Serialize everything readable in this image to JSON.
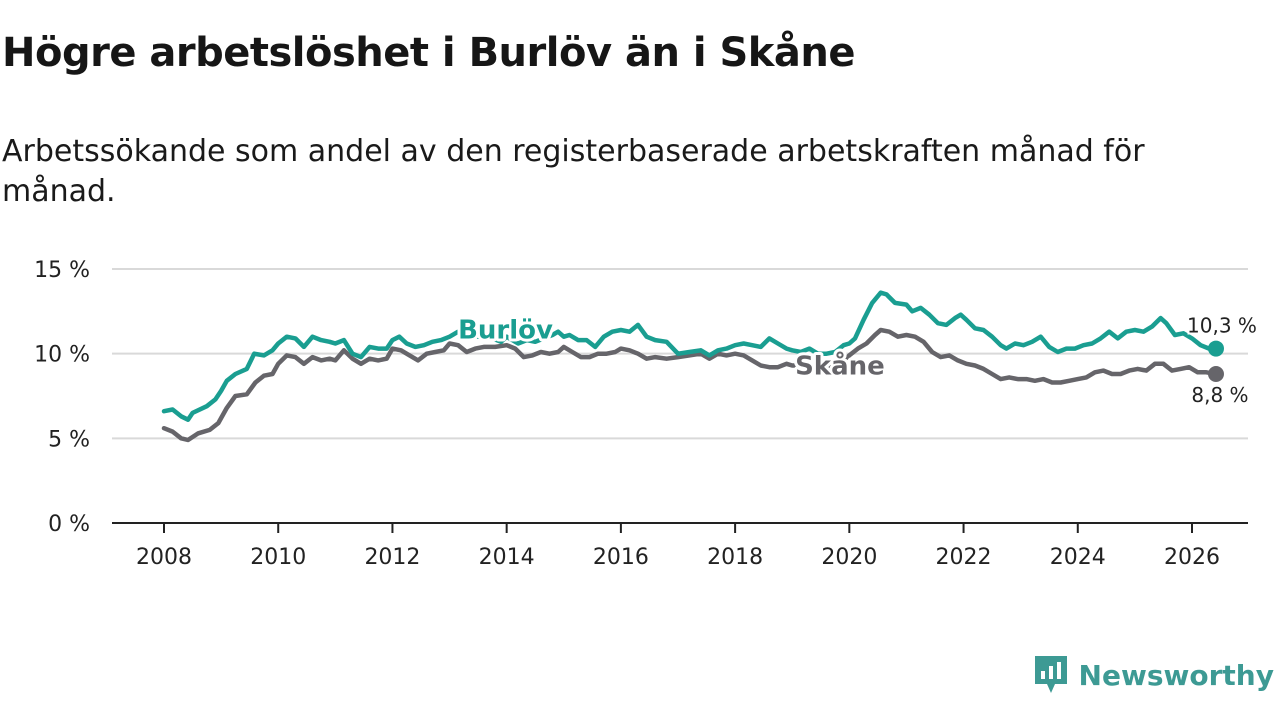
{
  "title": "Högre arbetslöshet i Burlöv än i Skåne",
  "subtitle": "Arbetssökande som andel av den registerbaserade arbetskraften månad för månad.",
  "brand": {
    "name": "Newsworthy",
    "icon": "newsworthy-logo-icon",
    "color": "#3d9a94"
  },
  "chart_data": {
    "type": "line",
    "title": "Högre arbetslöshet i Burlöv än i Skåne",
    "xlabel": "",
    "ylabel": "",
    "xlim": [
      2007.6,
      2027.0
    ],
    "ylim": [
      0,
      15
    ],
    "x_ticks": [
      2008,
      2010,
      2012,
      2014,
      2016,
      2018,
      2020,
      2022,
      2024,
      2026
    ],
    "x_tick_labels": [
      "2008",
      "2010",
      "2012",
      "2014",
      "2016",
      "2018",
      "2020",
      "2022",
      "2024",
      "2026"
    ],
    "y_ticks": [
      0,
      5,
      10,
      15
    ],
    "y_tick_labels": [
      "0 %",
      "5 %",
      "10 %",
      "15 %"
    ],
    "grid": true,
    "series": [
      {
        "name": "Burlöv",
        "color": "#1a9e91",
        "end_label": "10,3 %",
        "points": [
          [
            2008.0,
            6.6
          ],
          [
            2008.15,
            6.7
          ],
          [
            2008.3,
            6.3
          ],
          [
            2008.42,
            6.1
          ],
          [
            2008.5,
            6.5
          ],
          [
            2008.75,
            6.9
          ],
          [
            2008.9,
            7.3
          ],
          [
            2009.0,
            7.8
          ],
          [
            2009.1,
            8.4
          ],
          [
            2009.25,
            8.8
          ],
          [
            2009.45,
            9.1
          ],
          [
            2009.58,
            10.0
          ],
          [
            2009.75,
            9.9
          ],
          [
            2009.9,
            10.2
          ],
          [
            2010.0,
            10.6
          ],
          [
            2010.15,
            11.0
          ],
          [
            2010.3,
            10.9
          ],
          [
            2010.45,
            10.4
          ],
          [
            2010.6,
            11.0
          ],
          [
            2010.75,
            10.8
          ],
          [
            2010.9,
            10.7
          ],
          [
            2011.0,
            10.6
          ],
          [
            2011.15,
            10.8
          ],
          [
            2011.3,
            10.0
          ],
          [
            2011.45,
            9.8
          ],
          [
            2011.6,
            10.4
          ],
          [
            2011.75,
            10.3
          ],
          [
            2011.9,
            10.3
          ],
          [
            2012.0,
            10.8
          ],
          [
            2012.12,
            11.0
          ],
          [
            2012.25,
            10.6
          ],
          [
            2012.4,
            10.4
          ],
          [
            2012.55,
            10.5
          ],
          [
            2012.7,
            10.7
          ],
          [
            2012.85,
            10.8
          ],
          [
            2013.0,
            11.0
          ],
          [
            2013.15,
            11.3
          ],
          [
            2013.3,
            11.2
          ],
          [
            2013.45,
            11.0
          ],
          [
            2013.6,
            11.0
          ],
          [
            2013.75,
            10.9
          ],
          [
            2013.9,
            10.7
          ],
          [
            2014.0,
            11.0
          ],
          [
            2014.2,
            10.6
          ],
          [
            2014.35,
            10.8
          ],
          [
            2014.5,
            10.7
          ],
          [
            2014.65,
            10.9
          ],
          [
            2014.8,
            11.1
          ],
          [
            2014.9,
            11.3
          ],
          [
            2015.0,
            11.0
          ],
          [
            2015.1,
            11.1
          ],
          [
            2015.25,
            10.8
          ],
          [
            2015.4,
            10.8
          ],
          [
            2015.55,
            10.4
          ],
          [
            2015.7,
            11.0
          ],
          [
            2015.85,
            11.3
          ],
          [
            2016.0,
            11.4
          ],
          [
            2016.15,
            11.3
          ],
          [
            2016.3,
            11.7
          ],
          [
            2016.45,
            11.0
          ],
          [
            2016.6,
            10.8
          ],
          [
            2016.8,
            10.7
          ],
          [
            2017.0,
            10.0
          ],
          [
            2017.2,
            10.1
          ],
          [
            2017.4,
            10.2
          ],
          [
            2017.55,
            9.9
          ],
          [
            2017.7,
            10.2
          ],
          [
            2017.85,
            10.3
          ],
          [
            2018.0,
            10.5
          ],
          [
            2018.15,
            10.6
          ],
          [
            2018.3,
            10.5
          ],
          [
            2018.45,
            10.4
          ],
          [
            2018.6,
            10.9
          ],
          [
            2018.75,
            10.6
          ],
          [
            2018.9,
            10.3
          ],
          [
            2019.0,
            10.2
          ],
          [
            2019.15,
            10.1
          ],
          [
            2019.3,
            10.3
          ],
          [
            2019.45,
            10.0
          ],
          [
            2019.6,
            10.0
          ],
          [
            2019.75,
            10.1
          ],
          [
            2019.9,
            10.5
          ],
          [
            2020.0,
            10.6
          ],
          [
            2020.1,
            10.9
          ],
          [
            2020.25,
            12.0
          ],
          [
            2020.4,
            13.0
          ],
          [
            2020.55,
            13.6
          ],
          [
            2020.65,
            13.5
          ],
          [
            2020.8,
            13.0
          ],
          [
            2021.0,
            12.9
          ],
          [
            2021.1,
            12.5
          ],
          [
            2021.25,
            12.7
          ],
          [
            2021.4,
            12.3
          ],
          [
            2021.55,
            11.8
          ],
          [
            2021.7,
            11.7
          ],
          [
            2021.85,
            12.1
          ],
          [
            2021.95,
            12.3
          ],
          [
            2022.05,
            12.0
          ],
          [
            2022.2,
            11.5
          ],
          [
            2022.35,
            11.4
          ],
          [
            2022.5,
            11.0
          ],
          [
            2022.65,
            10.5
          ],
          [
            2022.75,
            10.3
          ],
          [
            2022.9,
            10.6
          ],
          [
            2023.05,
            10.5
          ],
          [
            2023.2,
            10.7
          ],
          [
            2023.35,
            11.0
          ],
          [
            2023.5,
            10.4
          ],
          [
            2023.65,
            10.1
          ],
          [
            2023.8,
            10.3
          ],
          [
            2023.95,
            10.3
          ],
          [
            2024.1,
            10.5
          ],
          [
            2024.25,
            10.6
          ],
          [
            2024.4,
            10.9
          ],
          [
            2024.55,
            11.3
          ],
          [
            2024.7,
            10.9
          ],
          [
            2024.85,
            11.3
          ],
          [
            2025.0,
            11.4
          ],
          [
            2025.15,
            11.3
          ],
          [
            2025.3,
            11.6
          ],
          [
            2025.45,
            12.1
          ],
          [
            2025.55,
            11.8
          ],
          [
            2025.7,
            11.1
          ],
          [
            2025.85,
            11.2
          ],
          [
            2026.0,
            10.9
          ],
          [
            2026.15,
            10.5
          ],
          [
            2026.3,
            10.3
          ],
          [
            2026.42,
            10.3
          ]
        ]
      },
      {
        "name": "Skåne",
        "color": "#66656a",
        "end_label": "8,8 %",
        "points": [
          [
            2008.0,
            5.6
          ],
          [
            2008.15,
            5.4
          ],
          [
            2008.3,
            5.0
          ],
          [
            2008.42,
            4.9
          ],
          [
            2008.6,
            5.3
          ],
          [
            2008.8,
            5.5
          ],
          [
            2008.95,
            5.9
          ],
          [
            2009.1,
            6.8
          ],
          [
            2009.25,
            7.5
          ],
          [
            2009.45,
            7.6
          ],
          [
            2009.6,
            8.3
          ],
          [
            2009.75,
            8.7
          ],
          [
            2009.9,
            8.8
          ],
          [
            2010.0,
            9.4
          ],
          [
            2010.15,
            9.9
          ],
          [
            2010.3,
            9.8
          ],
          [
            2010.45,
            9.4
          ],
          [
            2010.6,
            9.8
          ],
          [
            2010.75,
            9.6
          ],
          [
            2010.9,
            9.7
          ],
          [
            2011.0,
            9.6
          ],
          [
            2011.15,
            10.2
          ],
          [
            2011.3,
            9.7
          ],
          [
            2011.45,
            9.4
          ],
          [
            2011.6,
            9.7
          ],
          [
            2011.75,
            9.6
          ],
          [
            2011.9,
            9.7
          ],
          [
            2012.0,
            10.3
          ],
          [
            2012.15,
            10.2
          ],
          [
            2012.3,
            9.9
          ],
          [
            2012.45,
            9.6
          ],
          [
            2012.6,
            10.0
          ],
          [
            2012.75,
            10.1
          ],
          [
            2012.9,
            10.2
          ],
          [
            2013.0,
            10.6
          ],
          [
            2013.15,
            10.5
          ],
          [
            2013.3,
            10.1
          ],
          [
            2013.45,
            10.3
          ],
          [
            2013.6,
            10.4
          ],
          [
            2013.8,
            10.4
          ],
          [
            2014.0,
            10.5
          ],
          [
            2014.15,
            10.3
          ],
          [
            2014.3,
            9.8
          ],
          [
            2014.45,
            9.9
          ],
          [
            2014.6,
            10.1
          ],
          [
            2014.75,
            10.0
          ],
          [
            2014.9,
            10.1
          ],
          [
            2015.0,
            10.4
          ],
          [
            2015.15,
            10.1
          ],
          [
            2015.3,
            9.8
          ],
          [
            2015.45,
            9.8
          ],
          [
            2015.6,
            10.0
          ],
          [
            2015.75,
            10.0
          ],
          [
            2015.9,
            10.1
          ],
          [
            2016.0,
            10.3
          ],
          [
            2016.15,
            10.2
          ],
          [
            2016.3,
            10.0
          ],
          [
            2016.45,
            9.7
          ],
          [
            2016.6,
            9.8
          ],
          [
            2016.8,
            9.7
          ],
          [
            2017.0,
            9.8
          ],
          [
            2017.2,
            9.9
          ],
          [
            2017.4,
            10.0
          ],
          [
            2017.55,
            9.7
          ],
          [
            2017.7,
            10.0
          ],
          [
            2017.85,
            9.9
          ],
          [
            2018.0,
            10.0
          ],
          [
            2018.15,
            9.9
          ],
          [
            2018.3,
            9.6
          ],
          [
            2018.45,
            9.3
          ],
          [
            2018.6,
            9.2
          ],
          [
            2018.75,
            9.2
          ],
          [
            2018.9,
            9.4
          ],
          [
            2019.0,
            9.3
          ],
          [
            2019.15,
            9.3
          ],
          [
            2019.3,
            9.2
          ],
          [
            2019.45,
            9.0
          ],
          [
            2019.6,
            9.1
          ],
          [
            2019.75,
            9.3
          ],
          [
            2019.9,
            9.6
          ],
          [
            2020.0,
            9.9
          ],
          [
            2020.15,
            10.3
          ],
          [
            2020.3,
            10.6
          ],
          [
            2020.45,
            11.1
          ],
          [
            2020.55,
            11.4
          ],
          [
            2020.7,
            11.3
          ],
          [
            2020.85,
            11.0
          ],
          [
            2021.0,
            11.1
          ],
          [
            2021.15,
            11.0
          ],
          [
            2021.3,
            10.7
          ],
          [
            2021.45,
            10.1
          ],
          [
            2021.6,
            9.8
          ],
          [
            2021.75,
            9.9
          ],
          [
            2021.9,
            9.6
          ],
          [
            2022.05,
            9.4
          ],
          [
            2022.2,
            9.3
          ],
          [
            2022.35,
            9.1
          ],
          [
            2022.5,
            8.8
          ],
          [
            2022.65,
            8.5
          ],
          [
            2022.8,
            8.6
          ],
          [
            2022.95,
            8.5
          ],
          [
            2023.1,
            8.5
          ],
          [
            2023.25,
            8.4
          ],
          [
            2023.4,
            8.5
          ],
          [
            2023.55,
            8.3
          ],
          [
            2023.7,
            8.3
          ],
          [
            2023.85,
            8.4
          ],
          [
            2024.0,
            8.5
          ],
          [
            2024.15,
            8.6
          ],
          [
            2024.3,
            8.9
          ],
          [
            2024.45,
            9.0
          ],
          [
            2024.6,
            8.8
          ],
          [
            2024.75,
            8.8
          ],
          [
            2024.9,
            9.0
          ],
          [
            2025.05,
            9.1
          ],
          [
            2025.2,
            9.0
          ],
          [
            2025.35,
            9.4
          ],
          [
            2025.5,
            9.4
          ],
          [
            2025.65,
            9.0
          ],
          [
            2025.8,
            9.1
          ],
          [
            2025.95,
            9.2
          ],
          [
            2026.1,
            8.9
          ],
          [
            2026.25,
            8.9
          ],
          [
            2026.42,
            8.8
          ]
        ]
      }
    ]
  }
}
